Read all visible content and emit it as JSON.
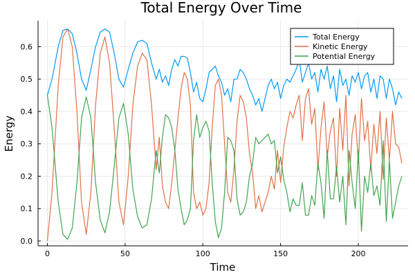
{
  "chart_data": {
    "type": "line",
    "title": "Total Energy Over Time",
    "xlabel": "Time",
    "ylabel": "Energy",
    "xlim": [
      -6,
      232
    ],
    "ylim": [
      -0.015,
      0.68
    ],
    "x_ticks": [
      0,
      50,
      100,
      150,
      200
    ],
    "y_ticks": [
      0.0,
      0.1,
      0.2,
      0.3,
      0.4,
      0.5,
      0.6
    ],
    "y_tick_labels": [
      "0.0",
      "0.1",
      "0.2",
      "0.3",
      "0.4",
      "0.5",
      "0.6"
    ],
    "grid": true,
    "legend_position": "top-right",
    "series": [
      {
        "name": "Total Energy",
        "color": "#009af9",
        "x": [
          0,
          3,
          7,
          10,
          13,
          16,
          19,
          22,
          25,
          28,
          31,
          34,
          37,
          40,
          43,
          46,
          49,
          52,
          55,
          58,
          61,
          64,
          67,
          70,
          72,
          74,
          76,
          78,
          80,
          82,
          84,
          86,
          88,
          90,
          92,
          94,
          96,
          98,
          100,
          102,
          104,
          106,
          108,
          110,
          112,
          114,
          116,
          118,
          120,
          122,
          124,
          126,
          128,
          130,
          132,
          134,
          136,
          138,
          140,
          142,
          144,
          146,
          148,
          150,
          152,
          154,
          156,
          158,
          160,
          162,
          164,
          166,
          168,
          170,
          172,
          174,
          176,
          178,
          180,
          182,
          184,
          186,
          188,
          190,
          192,
          194,
          196,
          198,
          200,
          202,
          204,
          206,
          208,
          210,
          212,
          214,
          216,
          218,
          220,
          222,
          224,
          226,
          228
        ],
        "values": [
          0.45,
          0.5,
          0.6,
          0.65,
          0.655,
          0.64,
          0.58,
          0.5,
          0.465,
          0.53,
          0.6,
          0.645,
          0.655,
          0.645,
          0.58,
          0.5,
          0.475,
          0.53,
          0.58,
          0.615,
          0.62,
          0.61,
          0.55,
          0.5,
          0.53,
          0.49,
          0.51,
          0.48,
          0.53,
          0.56,
          0.54,
          0.57,
          0.57,
          0.565,
          0.52,
          0.46,
          0.49,
          0.44,
          0.43,
          0.47,
          0.52,
          0.53,
          0.54,
          0.51,
          0.49,
          0.45,
          0.47,
          0.43,
          0.5,
          0.5,
          0.53,
          0.52,
          0.5,
          0.47,
          0.45,
          0.42,
          0.44,
          0.4,
          0.44,
          0.48,
          0.5,
          0.47,
          0.49,
          0.44,
          0.48,
          0.5,
          0.49,
          0.51,
          0.53,
          0.56,
          0.49,
          0.52,
          0.55,
          0.5,
          0.52,
          0.46,
          0.53,
          0.5,
          0.54,
          0.47,
          0.51,
          0.43,
          0.53,
          0.48,
          0.5,
          0.45,
          0.51,
          0.49,
          0.52,
          0.47,
          0.51,
          0.52,
          0.46,
          0.5,
          0.44,
          0.51,
          0.5,
          0.44,
          0.5,
          0.47,
          0.42,
          0.46,
          0.44
        ]
      },
      {
        "name": "Kinetic Energy",
        "color": "#e26f46",
        "x": [
          0,
          3,
          7,
          10,
          13,
          16,
          19,
          22,
          25,
          28,
          31,
          34,
          37,
          40,
          43,
          46,
          49,
          52,
          55,
          58,
          61,
          64,
          67,
          70,
          72,
          74,
          76,
          78,
          80,
          82,
          84,
          86,
          88,
          90,
          92,
          94,
          96,
          98,
          100,
          102,
          104,
          106,
          108,
          110,
          112,
          114,
          116,
          118,
          120,
          122,
          124,
          126,
          128,
          130,
          132,
          134,
          136,
          138,
          140,
          142,
          144,
          146,
          148,
          150,
          152,
          154,
          156,
          158,
          160,
          162,
          164,
          166,
          168,
          170,
          172,
          174,
          176,
          178,
          180,
          182,
          184,
          186,
          188,
          190,
          192,
          194,
          196,
          198,
          200,
          202,
          204,
          206,
          208,
          210,
          212,
          214,
          216,
          218,
          220,
          222,
          224,
          226,
          228
        ],
        "values": [
          0.0,
          0.15,
          0.48,
          0.63,
          0.655,
          0.6,
          0.4,
          0.12,
          0.02,
          0.15,
          0.42,
          0.58,
          0.63,
          0.55,
          0.35,
          0.12,
          0.05,
          0.2,
          0.42,
          0.54,
          0.58,
          0.56,
          0.42,
          0.22,
          0.32,
          0.17,
          0.12,
          0.1,
          0.18,
          0.28,
          0.38,
          0.47,
          0.52,
          0.5,
          0.42,
          0.15,
          0.1,
          0.12,
          0.08,
          0.1,
          0.18,
          0.35,
          0.48,
          0.5,
          0.45,
          0.3,
          0.15,
          0.12,
          0.22,
          0.37,
          0.45,
          0.43,
          0.38,
          0.27,
          0.21,
          0.1,
          0.14,
          0.09,
          0.12,
          0.15,
          0.2,
          0.16,
          0.28,
          0.18,
          0.29,
          0.35,
          0.4,
          0.38,
          0.42,
          0.45,
          0.31,
          0.44,
          0.47,
          0.36,
          0.41,
          0.22,
          0.35,
          0.43,
          0.26,
          0.34,
          0.38,
          0.2,
          0.41,
          0.28,
          0.45,
          0.17,
          0.33,
          0.39,
          0.24,
          0.44,
          0.31,
          0.37,
          0.22,
          0.36,
          0.27,
          0.4,
          0.19,
          0.38,
          0.25,
          0.4,
          0.3,
          0.29,
          0.24
        ]
      },
      {
        "name": "Potential Energy",
        "color": "#3ea44e",
        "x": [
          0,
          3,
          7,
          10,
          13,
          16,
          19,
          22,
          25,
          28,
          31,
          34,
          37,
          40,
          43,
          46,
          49,
          52,
          55,
          58,
          61,
          64,
          67,
          70,
          72,
          74,
          76,
          78,
          80,
          82,
          84,
          86,
          88,
          90,
          92,
          94,
          96,
          98,
          100,
          102,
          104,
          106,
          108,
          110,
          112,
          114,
          116,
          118,
          120,
          122,
          124,
          126,
          128,
          130,
          132,
          134,
          136,
          138,
          140,
          142,
          144,
          146,
          148,
          150,
          152,
          154,
          156,
          158,
          160,
          162,
          164,
          166,
          168,
          170,
          172,
          174,
          176,
          178,
          180,
          182,
          184,
          186,
          188,
          190,
          192,
          194,
          196,
          198,
          200,
          202,
          204,
          206,
          208,
          210,
          212,
          214,
          216,
          218,
          220,
          222,
          224,
          226,
          228
        ],
        "values": [
          0.45,
          0.35,
          0.12,
          0.02,
          0.005,
          0.04,
          0.18,
          0.38,
          0.445,
          0.38,
          0.18,
          0.065,
          0.025,
          0.09,
          0.23,
          0.38,
          0.425,
          0.33,
          0.16,
          0.075,
          0.04,
          0.05,
          0.13,
          0.28,
          0.21,
          0.32,
          0.39,
          0.38,
          0.35,
          0.28,
          0.16,
          0.1,
          0.05,
          0.065,
          0.1,
          0.31,
          0.39,
          0.32,
          0.35,
          0.37,
          0.34,
          0.18,
          0.06,
          0.01,
          0.04,
          0.15,
          0.32,
          0.31,
          0.28,
          0.13,
          0.08,
          0.09,
          0.12,
          0.2,
          0.24,
          0.32,
          0.3,
          0.31,
          0.32,
          0.33,
          0.3,
          0.31,
          0.21,
          0.26,
          0.19,
          0.15,
          0.09,
          0.13,
          0.11,
          0.11,
          0.18,
          0.08,
          0.08,
          0.14,
          0.11,
          0.24,
          0.18,
          0.07,
          0.28,
          0.13,
          0.13,
          0.23,
          0.12,
          0.2,
          0.05,
          0.28,
          0.18,
          0.1,
          0.28,
          0.03,
          0.2,
          0.15,
          0.24,
          0.14,
          0.17,
          0.11,
          0.31,
          0.06,
          0.25,
          0.07,
          0.12,
          0.17,
          0.2
        ]
      }
    ]
  }
}
